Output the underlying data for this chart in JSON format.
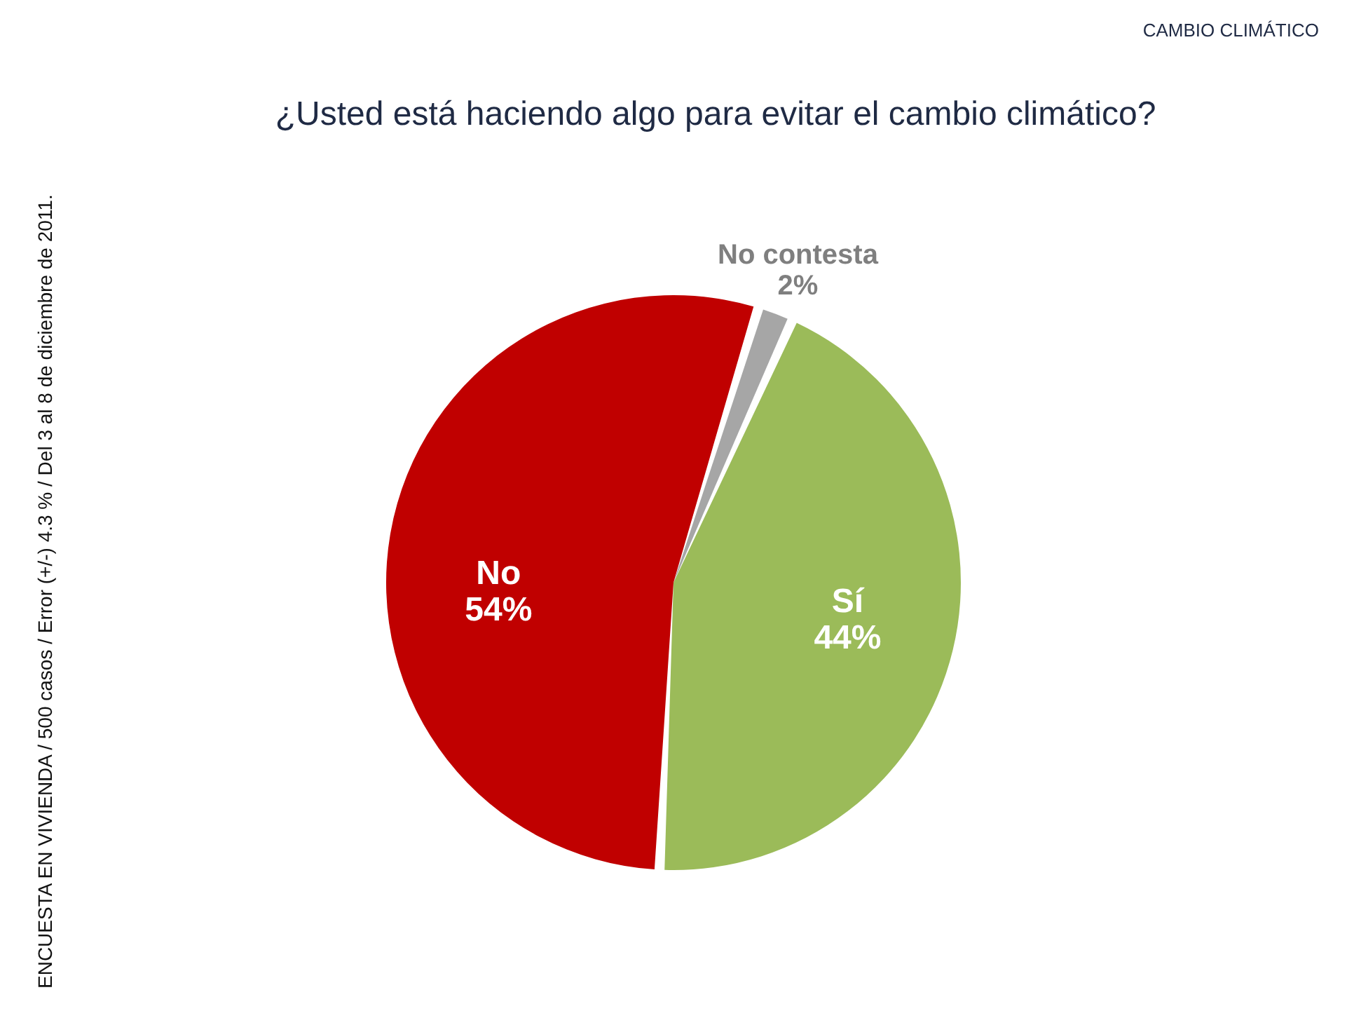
{
  "chart_data": {
    "type": "pie",
    "title": "¿Usted está haciendo algo para evitar el cambio climático?",
    "categories": [
      "No contesta",
      "Sí",
      "No"
    ],
    "values": [
      2,
      44,
      54
    ],
    "value_labels": [
      "2%",
      "44%",
      "54%"
    ],
    "colors": [
      "#a6a6a6",
      "#9bbb59",
      "#c00000"
    ],
    "annotations": [
      "CAMBIO CLIMÁTICO",
      "ENCUESTA EN VIVIENDA / 500 casos / Error (+/-) 4.3 % / Del 3 al 8 de diciembre de 2011."
    ]
  }
}
